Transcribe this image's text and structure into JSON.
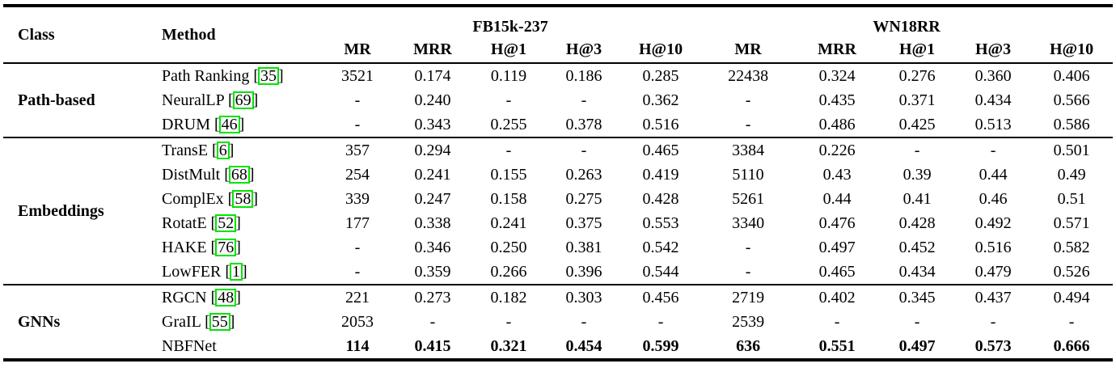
{
  "table": {
    "headers": {
      "class": "Class",
      "method": "Method",
      "metrics": [
        "MR",
        "MRR",
        "H@1",
        "H@3",
        "H@10"
      ]
    },
    "col_groups": [
      {
        "label": "FB15k-237"
      },
      {
        "label": "WN18RR"
      }
    ],
    "accent_citation_color": "#00e400",
    "groups": [
      {
        "class": "Path-based",
        "rows": [
          {
            "method": "Path Ranking",
            "cite": "35",
            "bold": false,
            "fb": [
              "3521",
              "0.174",
              "0.119",
              "0.186",
              "0.285"
            ],
            "wn": [
              "22438",
              "0.324",
              "0.276",
              "0.360",
              "0.406"
            ]
          },
          {
            "method": "NeuralLP",
            "cite": "69",
            "bold": false,
            "fb": [
              "-",
              "0.240",
              "-",
              "-",
              "0.362"
            ],
            "wn": [
              "-",
              "0.435",
              "0.371",
              "0.434",
              "0.566"
            ]
          },
          {
            "method": "DRUM",
            "cite": "46",
            "bold": false,
            "fb": [
              "-",
              "0.343",
              "0.255",
              "0.378",
              "0.516"
            ],
            "wn": [
              "-",
              "0.486",
              "0.425",
              "0.513",
              "0.586"
            ]
          }
        ]
      },
      {
        "class": "Embeddings",
        "rows": [
          {
            "method": "TransE",
            "cite": "6",
            "bold": false,
            "fb": [
              "357",
              "0.294",
              "-",
              "-",
              "0.465"
            ],
            "wn": [
              "3384",
              "0.226",
              "-",
              "-",
              "0.501"
            ]
          },
          {
            "method": "DistMult",
            "cite": "68",
            "bold": false,
            "fb": [
              "254",
              "0.241",
              "0.155",
              "0.263",
              "0.419"
            ],
            "wn": [
              "5110",
              "0.43",
              "0.39",
              "0.44",
              "0.49"
            ]
          },
          {
            "method": "ComplEx",
            "cite": "58",
            "bold": false,
            "fb": [
              "339",
              "0.247",
              "0.158",
              "0.275",
              "0.428"
            ],
            "wn": [
              "5261",
              "0.44",
              "0.41",
              "0.46",
              "0.51"
            ]
          },
          {
            "method": "RotatE",
            "cite": "52",
            "bold": false,
            "fb": [
              "177",
              "0.338",
              "0.241",
              "0.375",
              "0.553"
            ],
            "wn": [
              "3340",
              "0.476",
              "0.428",
              "0.492",
              "0.571"
            ]
          },
          {
            "method": "HAKE",
            "cite": "76",
            "bold": false,
            "fb": [
              "-",
              "0.346",
              "0.250",
              "0.381",
              "0.542"
            ],
            "wn": [
              "-",
              "0.497",
              "0.452",
              "0.516",
              "0.582"
            ]
          },
          {
            "method": "LowFER",
            "cite": "1",
            "bold": false,
            "fb": [
              "-",
              "0.359",
              "0.266",
              "0.396",
              "0.544"
            ],
            "wn": [
              "-",
              "0.465",
              "0.434",
              "0.479",
              "0.526"
            ]
          }
        ]
      },
      {
        "class": "GNNs",
        "rows": [
          {
            "method": "RGCN",
            "cite": "48",
            "bold": false,
            "fb": [
              "221",
              "0.273",
              "0.182",
              "0.303",
              "0.456"
            ],
            "wn": [
              "2719",
              "0.402",
              "0.345",
              "0.437",
              "0.494"
            ]
          },
          {
            "method": "GraIL",
            "cite": "55",
            "bold": false,
            "fb": [
              "2053",
              "-",
              "-",
              "-",
              "-"
            ],
            "wn": [
              "2539",
              "-",
              "-",
              "-",
              "-"
            ]
          },
          {
            "method": "NBFNet",
            "cite": null,
            "bold": true,
            "fb": [
              "114",
              "0.415",
              "0.321",
              "0.454",
              "0.599"
            ],
            "wn": [
              "636",
              "0.551",
              "0.497",
              "0.573",
              "0.666"
            ]
          }
        ]
      }
    ]
  }
}
